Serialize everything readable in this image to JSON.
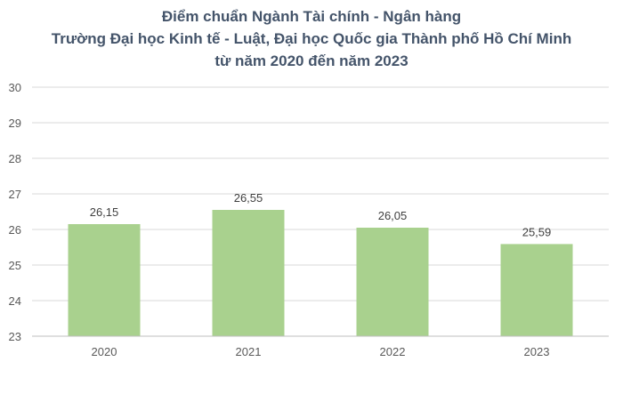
{
  "chart_data": {
    "type": "bar",
    "title": [
      "Điểm chuẩn Ngành Tài chính - Ngân hàng",
      "Trường Đại học Kinh tế - Luật, Đại học Quốc gia Thành phố Hồ Chí Minh",
      "từ năm 2020 đến năm 2023"
    ],
    "categories": [
      "2020",
      "2021",
      "2022",
      "2023"
    ],
    "values": [
      26.15,
      26.55,
      26.05,
      25.59
    ],
    "data_labels": [
      "26,15",
      "26,55",
      "26,05",
      "25,59"
    ],
    "ylim": [
      23,
      30
    ],
    "yticks": [
      23,
      24,
      25,
      26,
      27,
      28,
      29,
      30
    ],
    "xlabel": "",
    "ylabel": "",
    "grid": true,
    "bar_color": "#a9d18e",
    "grid_color": "#d9d9d9"
  }
}
